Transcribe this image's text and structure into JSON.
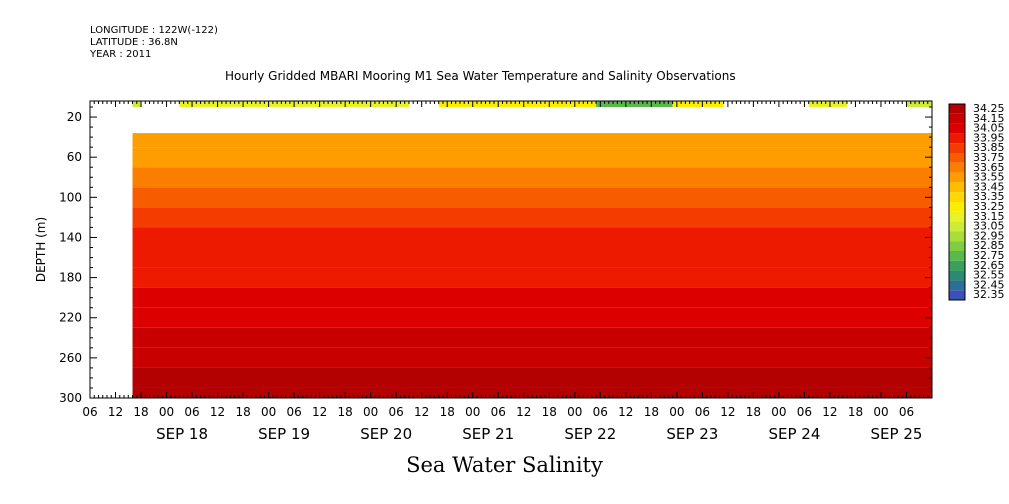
{
  "header": {
    "longitude": "LONGITUDE : 122W(-122)",
    "latitude": "LATITUDE : 36.8N",
    "year": "YEAR : 2011",
    "title": "Hourly Gridded MBARI Mooring M1 Sea Water Temperature and Salinity Observations",
    "footer": "Sea Water Salinity"
  },
  "colors": {
    "background": "#ffffff",
    "frame": "#000000",
    "gap": "#ffffff"
  },
  "chart_data": {
    "type": "heatmap",
    "title": "Hourly Gridded MBARI Mooring M1 Sea Water Temperature and Salinity Observations",
    "xlabel": "",
    "ylabel": "DEPTH (m)",
    "variable": "Sea Water Salinity",
    "y_axis": {
      "ticks": [
        20,
        60,
        100,
        140,
        180,
        220,
        260,
        300
      ],
      "range": [
        4,
        300
      ],
      "inverted": true
    },
    "x_axis": {
      "start": "2011-09-17 06:00",
      "end": "2011-09-25 12:00",
      "hour_labels": [
        "06",
        "12",
        "18",
        "00",
        "06",
        "12",
        "18",
        "00",
        "06",
        "12",
        "18",
        "00",
        "06",
        "12",
        "18",
        "00",
        "06",
        "12",
        "18",
        "00",
        "06",
        "12",
        "18",
        "00",
        "06",
        "12",
        "18",
        "00",
        "06",
        "12",
        "18",
        "00",
        "06"
      ],
      "day_labels": [
        "SEP 18",
        "SEP 19",
        "SEP 20",
        "SEP 21",
        "SEP 22",
        "SEP 23",
        "SEP 24",
        "SEP 25"
      ]
    },
    "colorbar": {
      "levels": [
        "34.25",
        "34.15",
        "34.05",
        "33.95",
        "33.85",
        "33.75",
        "33.65",
        "33.55",
        "33.45",
        "33.35",
        "33.25",
        "33.15",
        "33.05",
        "32.95",
        "32.85",
        "32.75",
        "32.65",
        "32.55",
        "32.45",
        "32.35"
      ],
      "colors": [
        "#b30000",
        "#c80000",
        "#dd0000",
        "#ee1a00",
        "#f43c00",
        "#f85c00",
        "#fb7e00",
        "#fd9d00",
        "#ffbd00",
        "#ffd800",
        "#fbee00",
        "#e9f226",
        "#cdec3a",
        "#a8dd3c",
        "#80cc42",
        "#5ab84c",
        "#3aa05a",
        "#2a8a72",
        "#2e6e96",
        "#3a52b8"
      ],
      "extra_colors": [
        "#4a38cc",
        "#6a2ad8",
        "#8c1fe0",
        "#c030f0",
        "#e050ff"
      ]
    },
    "surface_values": [
      {
        "start": "2011-09-17 16:00",
        "end": "2011-09-17 18:00",
        "value": 33.1
      },
      {
        "start": "2011-09-18 03:00",
        "end": "2011-09-20 09:00",
        "value": 33.15
      },
      {
        "start": "2011-09-20 16:00",
        "end": "2011-09-22 05:00",
        "value": 33.25
      },
      {
        "start": "2011-09-22 05:00",
        "end": "2011-09-22 23:00",
        "value": 32.75
      },
      {
        "start": "2011-09-22 23:00",
        "end": "2011-09-23 11:00",
        "value": 33.25
      },
      {
        "start": "2011-09-24 07:00",
        "end": "2011-09-24 16:00",
        "value": 33.15
      },
      {
        "start": "2011-09-25 06:00",
        "end": "2011-09-25 12:00",
        "value": 33.05
      }
    ],
    "profile": [
      {
        "depth": 40,
        "value": 33.6
      },
      {
        "depth": 60,
        "value": 33.6
      },
      {
        "depth": 80,
        "value": 33.72
      },
      {
        "depth": 100,
        "value": 33.82
      },
      {
        "depth": 120,
        "value": 33.88
      },
      {
        "depth": 140,
        "value": 33.95
      },
      {
        "depth": 160,
        "value": 33.99
      },
      {
        "depth": 180,
        "value": 34.02
      },
      {
        "depth": 200,
        "value": 34.06
      },
      {
        "depth": 220,
        "value": 34.1
      },
      {
        "depth": 240,
        "value": 34.16
      },
      {
        "depth": 260,
        "value": 34.22
      },
      {
        "depth": 280,
        "value": 34.26
      },
      {
        "depth": 300,
        "value": 34.28
      }
    ],
    "grid": false,
    "legend": "right"
  }
}
